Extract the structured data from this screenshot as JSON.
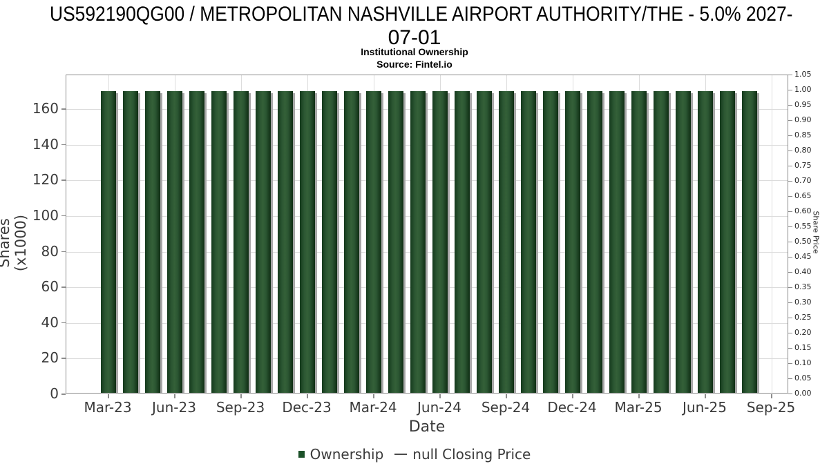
{
  "header": {
    "title_line1": "US592190QG00 / METROPOLITAN NASHVILLE AIRPORT AUTHORITY/THE - 5.0% 2027-",
    "title_line2": "07-01",
    "subtitle": "Institutional Ownership",
    "source": "Source: Fintel.io"
  },
  "legend": {
    "ownership_label": "Ownership",
    "price_label": "null Closing Price"
  },
  "chart_data": {
    "type": "bar",
    "title": "US592190QG00 / METROPOLITAN NASHVILLE AIRPORT AUTHORITY/THE - 5.0% 2027-07-01",
    "subtitle": "Institutional Ownership",
    "source": "Source: Fintel.io",
    "xlabel": "Date",
    "ylabel_left": "Shares (x1000)",
    "ylabel_right": "Share Price",
    "grid": true,
    "legend_position": "bottom",
    "x": [
      "Mar-23",
      "Apr-23",
      "May-23",
      "Jun-23",
      "Jul-23",
      "Aug-23",
      "Sep-23",
      "Oct-23",
      "Nov-23",
      "Dec-23",
      "Jan-24",
      "Feb-24",
      "Mar-24",
      "Apr-24",
      "May-24",
      "Jun-24",
      "Jul-24",
      "Aug-24",
      "Sep-24",
      "Oct-24",
      "Nov-24",
      "Dec-24",
      "Jan-25",
      "Feb-25",
      "Mar-25",
      "Apr-25",
      "May-25",
      "Jun-25",
      "Jul-25",
      "Aug-25"
    ],
    "series": [
      {
        "name": "Ownership",
        "type": "bar",
        "values": [
          169.9,
          169.9,
          169.9,
          169.9,
          169.9,
          169.9,
          169.9,
          169.9,
          169.9,
          169.9,
          169.9,
          169.9,
          169.9,
          169.9,
          169.9,
          169.9,
          169.9,
          169.9,
          169.9,
          169.9,
          169.9,
          169.9,
          169.9,
          169.9,
          169.9,
          169.9,
          169.9,
          169.9,
          169.9,
          169.9
        ]
      },
      {
        "name": "null Closing Price",
        "type": "line",
        "values": []
      }
    ],
    "xtick_labels": [
      "Mar-23",
      "Jun-23",
      "Sep-23",
      "Dec-23",
      "Mar-24",
      "Jun-24",
      "Sep-24",
      "Dec-24",
      "Mar-25",
      "Jun-25",
      "Sep-25"
    ],
    "yticks_left": [
      0,
      20,
      40,
      60,
      80,
      100,
      120,
      140,
      160
    ],
    "ylim_left": [
      0,
      179
    ],
    "yticks_right": [
      "0.00",
      "0.05",
      "0.10",
      "0.15",
      "0.20",
      "0.25",
      "0.30",
      "0.35",
      "0.40",
      "0.45",
      "0.50",
      "0.55",
      "0.60",
      "0.65",
      "0.70",
      "0.75",
      "0.80",
      "0.85",
      "0.90",
      "0.95",
      "1.00",
      "1.05"
    ],
    "ylim_right": [
      0,
      1.05
    ],
    "colors": {
      "bar_dark": "#143a1c",
      "bar_mid": "#2b5632",
      "bar_light": "#346038",
      "bar_edge_dark": "#0f2d14",
      "bar_shadow": "#a8a8a8",
      "grid": "#dcdcdc",
      "spine": "#888888",
      "legend_square": "#1c5129"
    }
  }
}
